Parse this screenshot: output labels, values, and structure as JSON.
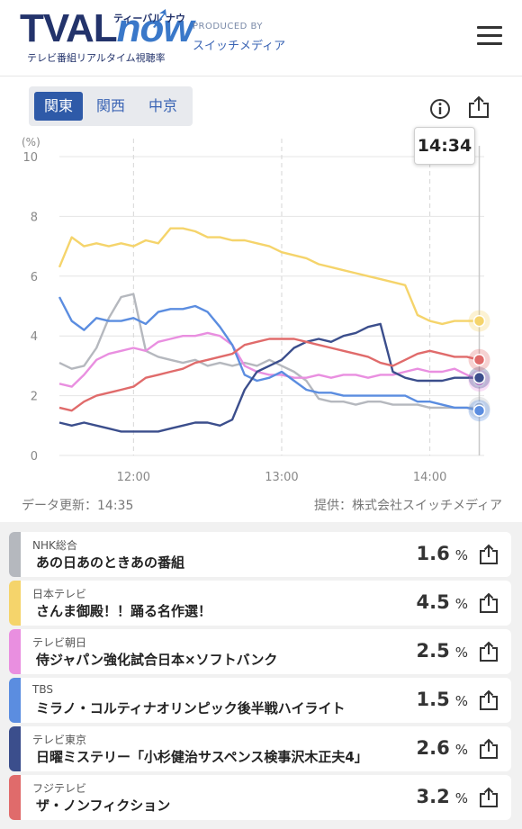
{
  "header": {
    "logo_main": "TVAL",
    "logo_now": "now",
    "logo_kana": "ティーバル ナウ",
    "logo_sub": "テレビ番組リアルタイム視聴率",
    "produced_by": "PRODUCED BY",
    "company": "スイッチメディア",
    "menu_icon": "hamburger-menu-icon"
  },
  "region_tabs": [
    {
      "label": "関東",
      "active": true
    },
    {
      "label": "関西",
      "active": false
    },
    {
      "label": "中京",
      "active": false
    }
  ],
  "tools": {
    "info_icon": "info-icon",
    "share_icon": "share-icon"
  },
  "tooltip_time": "14:34",
  "chart_data": {
    "type": "line",
    "ylabel": "(%)",
    "ylim": [
      0,
      10
    ],
    "y_ticks": [
      "0",
      "2",
      "4",
      "6",
      "8",
      "10"
    ],
    "x_ticks": [
      "12:00",
      "13:00",
      "14:00"
    ],
    "x_range_min": [
      0,
      172
    ],
    "x": [
      0,
      5,
      10,
      15,
      20,
      25,
      30,
      35,
      40,
      45,
      50,
      55,
      60,
      65,
      70,
      75,
      80,
      85,
      90,
      95,
      100,
      105,
      110,
      115,
      120,
      125,
      130,
      135,
      140,
      145,
      150,
      155,
      160,
      165,
      170
    ],
    "series": [
      {
        "name": "NHK総合",
        "color": "#b5b8be",
        "values": [
          3.1,
          2.9,
          3.0,
          3.6,
          4.6,
          5.3,
          5.4,
          3.5,
          3.3,
          3.2,
          3.1,
          3.2,
          3.0,
          3.1,
          3.0,
          3.1,
          3.0,
          3.2,
          3.0,
          2.8,
          2.5,
          1.9,
          1.8,
          1.8,
          1.7,
          1.8,
          1.8,
          1.7,
          1.7,
          1.7,
          1.6,
          1.6,
          1.6,
          1.6,
          1.6
        ]
      },
      {
        "name": "日本テレビ",
        "color": "#f5d46b",
        "values": [
          6.3,
          7.3,
          7.0,
          7.1,
          7.0,
          7.1,
          7.0,
          7.2,
          7.1,
          7.6,
          7.6,
          7.5,
          7.3,
          7.3,
          7.2,
          7.2,
          7.1,
          7.0,
          6.8,
          6.7,
          6.6,
          6.4,
          6.3,
          6.2,
          6.1,
          6.0,
          5.9,
          5.8,
          5.7,
          4.7,
          4.5,
          4.4,
          4.5,
          4.5,
          4.5
        ]
      },
      {
        "name": "テレビ朝日",
        "color": "#e98fe0",
        "values": [
          2.4,
          2.3,
          2.7,
          3.2,
          3.4,
          3.5,
          3.6,
          3.5,
          3.8,
          3.9,
          4.0,
          4.0,
          4.1,
          4.0,
          3.7,
          3.0,
          2.8,
          2.7,
          2.7,
          2.6,
          2.6,
          2.7,
          2.6,
          2.7,
          2.7,
          2.6,
          2.7,
          2.7,
          2.8,
          2.9,
          2.8,
          2.8,
          2.9,
          2.7,
          2.5
        ]
      },
      {
        "name": "TBS",
        "color": "#5b8de0",
        "values": [
          5.3,
          4.5,
          4.2,
          4.6,
          4.5,
          4.5,
          4.6,
          4.4,
          4.8,
          4.9,
          4.9,
          5.0,
          4.8,
          4.3,
          3.7,
          2.7,
          2.5,
          2.6,
          2.8,
          2.5,
          2.2,
          2.1,
          2.1,
          2.0,
          2.0,
          2.0,
          2.0,
          2.0,
          2.0,
          1.8,
          1.8,
          1.7,
          1.6,
          1.6,
          1.5
        ]
      },
      {
        "name": "テレビ東京",
        "color": "#3b4e8c",
        "values": [
          1.1,
          1.0,
          1.1,
          1.0,
          0.9,
          0.8,
          0.8,
          0.8,
          0.8,
          0.9,
          1.0,
          1.1,
          1.1,
          1.0,
          1.2,
          2.2,
          2.8,
          3.0,
          3.2,
          3.6,
          3.8,
          3.9,
          3.8,
          4.0,
          4.1,
          4.3,
          4.4,
          2.8,
          2.6,
          2.5,
          2.5,
          2.5,
          2.6,
          2.6,
          2.6
        ]
      },
      {
        "name": "フジテレビ",
        "color": "#e06b6b",
        "values": [
          1.6,
          1.5,
          1.8,
          2.0,
          2.1,
          2.2,
          2.3,
          2.6,
          2.7,
          2.8,
          2.9,
          3.1,
          3.2,
          3.3,
          3.4,
          3.7,
          3.8,
          3.9,
          3.9,
          3.9,
          3.8,
          3.7,
          3.6,
          3.5,
          3.4,
          3.3,
          3.1,
          3.0,
          3.2,
          3.4,
          3.5,
          3.4,
          3.3,
          3.3,
          3.2
        ]
      }
    ]
  },
  "footer": {
    "updated": "データ更新：14:35",
    "provider": "提供：株式会社スイッチメディア"
  },
  "programs": [
    {
      "channel": "NHK総合",
      "program": "あの日あのときあの番組",
      "rating": "1.6",
      "unit": "%",
      "color": "#b5b8be"
    },
    {
      "channel": "日本テレビ",
      "program": "さんま御殿！！踊る名作選！",
      "rating": "4.5",
      "unit": "%",
      "color": "#f5d46b"
    },
    {
      "channel": "テレビ朝日",
      "program": "侍ジャパン強化試合日本×ソフトバンク",
      "rating": "2.5",
      "unit": "%",
      "color": "#e98fe0"
    },
    {
      "channel": "TBS",
      "program": "ミラノ・コルティナオリンピック後半戦ハイライト",
      "rating": "1.5",
      "unit": "%",
      "color": "#5b8de0"
    },
    {
      "channel": "テレビ東京",
      "program": "日曜ミステリー「小杉健治サスペンス検事沢木正夫4」",
      "rating": "2.6",
      "unit": "%",
      "color": "#3b4e8c"
    },
    {
      "channel": "フジテレビ",
      "program": "ザ・ノンフィクション",
      "rating": "3.2",
      "unit": "%",
      "color": "#e06b6b"
    }
  ]
}
